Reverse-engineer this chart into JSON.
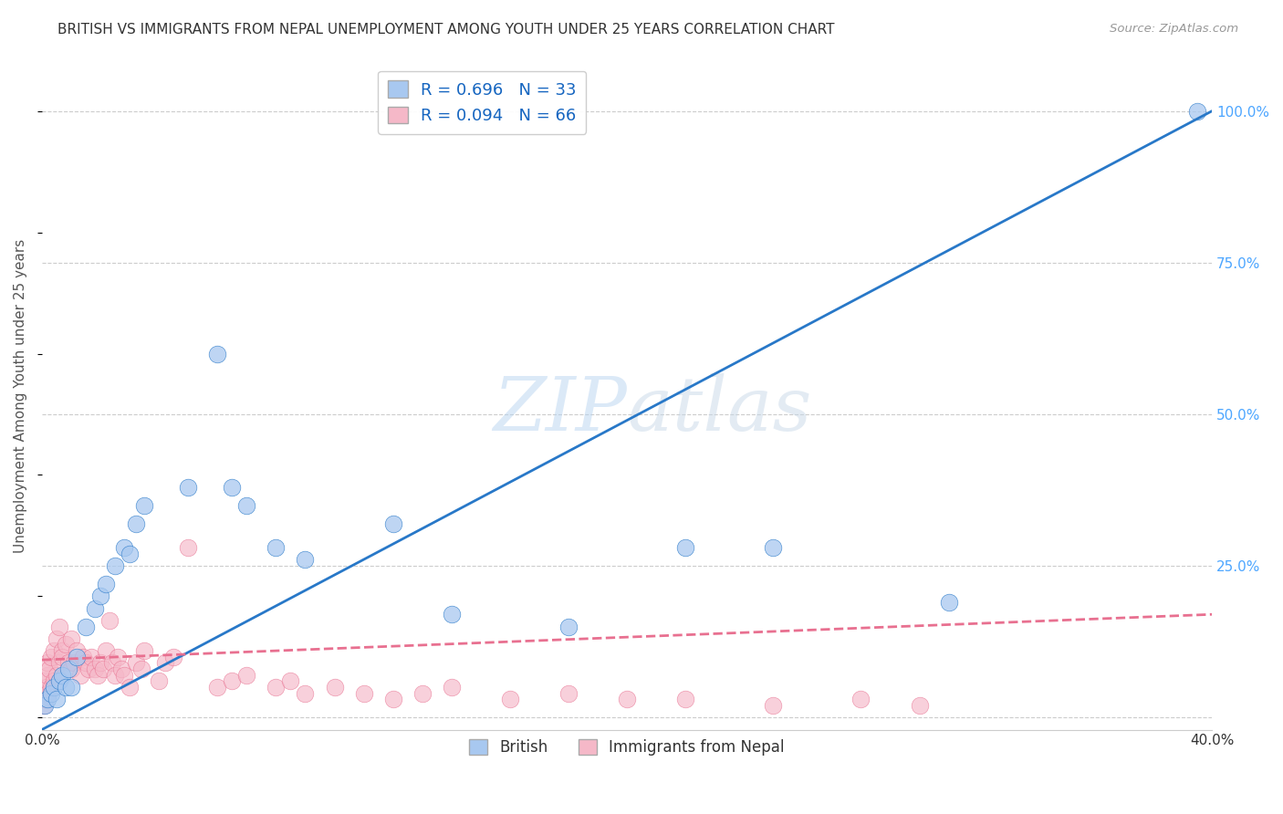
{
  "title": "BRITISH VS IMMIGRANTS FROM NEPAL UNEMPLOYMENT AMONG YOUTH UNDER 25 YEARS CORRELATION CHART",
  "source": "Source: ZipAtlas.com",
  "ylabel": "Unemployment Among Youth under 25 years",
  "xlim": [
    0.0,
    0.4
  ],
  "ylim": [
    -0.02,
    1.08
  ],
  "x_ticks": [
    0.0,
    0.1,
    0.2,
    0.3,
    0.4
  ],
  "x_tick_labels": [
    "0.0%",
    "",
    "",
    "",
    "40.0%"
  ],
  "y_ticks_right": [
    0.0,
    0.25,
    0.5,
    0.75,
    1.0
  ],
  "y_tick_labels_right": [
    "",
    "25.0%",
    "50.0%",
    "75.0%",
    "100.0%"
  ],
  "watermark": "ZIPatlas",
  "british_color": "#a8c8f0",
  "nepal_color": "#f5b8c8",
  "british_line_color": "#2878c8",
  "nepal_line_color": "#e87090",
  "british_R": 0.696,
  "british_N": 33,
  "nepal_R": 0.094,
  "nepal_N": 66,
  "legend_label_british": "British",
  "legend_label_nepal": "Immigrants from Nepal",
  "british_line_x0": 0.0,
  "british_line_y0": -0.02,
  "british_line_x1": 0.4,
  "british_line_y1": 1.0,
  "nepal_line_x0": 0.0,
  "nepal_line_y0": 0.095,
  "nepal_line_x1": 0.4,
  "nepal_line_y1": 0.17,
  "british_x": [
    0.001,
    0.002,
    0.003,
    0.004,
    0.005,
    0.006,
    0.007,
    0.008,
    0.009,
    0.01,
    0.012,
    0.015,
    0.018,
    0.02,
    0.022,
    0.025,
    0.028,
    0.03,
    0.032,
    0.035,
    0.05,
    0.06,
    0.065,
    0.07,
    0.08,
    0.09,
    0.12,
    0.14,
    0.18,
    0.22,
    0.31,
    0.395,
    0.25
  ],
  "british_y": [
    0.02,
    0.03,
    0.04,
    0.05,
    0.03,
    0.06,
    0.07,
    0.05,
    0.08,
    0.05,
    0.1,
    0.15,
    0.18,
    0.2,
    0.22,
    0.25,
    0.28,
    0.27,
    0.32,
    0.35,
    0.38,
    0.6,
    0.38,
    0.35,
    0.28,
    0.26,
    0.32,
    0.17,
    0.15,
    0.28,
    0.19,
    1.0,
    0.28
  ],
  "nepal_x": [
    0.0005,
    0.001,
    0.001,
    0.0015,
    0.002,
    0.002,
    0.002,
    0.0025,
    0.003,
    0.003,
    0.004,
    0.004,
    0.005,
    0.005,
    0.006,
    0.006,
    0.007,
    0.007,
    0.008,
    0.009,
    0.01,
    0.01,
    0.011,
    0.012,
    0.013,
    0.014,
    0.015,
    0.016,
    0.017,
    0.018,
    0.019,
    0.02,
    0.021,
    0.022,
    0.023,
    0.024,
    0.025,
    0.026,
    0.027,
    0.028,
    0.03,
    0.032,
    0.034,
    0.035,
    0.04,
    0.042,
    0.045,
    0.05,
    0.06,
    0.065,
    0.07,
    0.08,
    0.085,
    0.09,
    0.1,
    0.11,
    0.12,
    0.13,
    0.14,
    0.16,
    0.18,
    0.2,
    0.22,
    0.25,
    0.28,
    0.3
  ],
  "nepal_y": [
    0.02,
    0.03,
    0.06,
    0.05,
    0.04,
    0.07,
    0.09,
    0.08,
    0.05,
    0.1,
    0.06,
    0.11,
    0.07,
    0.13,
    0.09,
    0.15,
    0.11,
    0.1,
    0.12,
    0.09,
    0.08,
    0.13,
    0.09,
    0.11,
    0.07,
    0.1,
    0.09,
    0.08,
    0.1,
    0.08,
    0.07,
    0.09,
    0.08,
    0.11,
    0.16,
    0.09,
    0.07,
    0.1,
    0.08,
    0.07,
    0.05,
    0.09,
    0.08,
    0.11,
    0.06,
    0.09,
    0.1,
    0.28,
    0.05,
    0.06,
    0.07,
    0.05,
    0.06,
    0.04,
    0.05,
    0.04,
    0.03,
    0.04,
    0.05,
    0.03,
    0.04,
    0.03,
    0.03,
    0.02,
    0.03,
    0.02
  ],
  "grid_color": "#cccccc",
  "bg_color": "#ffffff",
  "title_color": "#333333",
  "axis_label_color": "#555555",
  "right_axis_color": "#4da6ff"
}
